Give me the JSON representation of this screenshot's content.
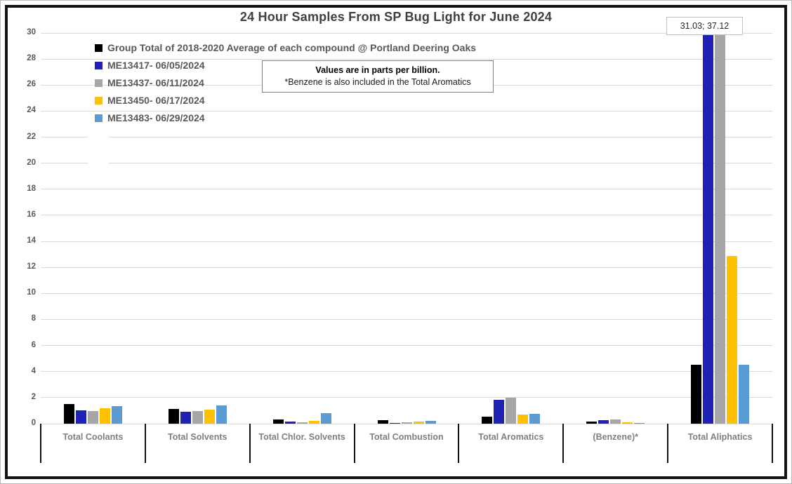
{
  "title": "24 Hour Samples From SP Bug Light for June 2024",
  "note_box": {
    "line1": "Values are in parts per billion.",
    "line2": "*Benzene is also included in the Total Aromatics"
  },
  "annotation_box": "31.03; 37.12",
  "chart_data": {
    "type": "bar",
    "title": "24 Hour Samples From SP Bug Light for June 2024",
    "categories": [
      "Total Coolants",
      "Total Solvents",
      "Total Chlor. Solvents",
      "Total Combustion",
      "Total Aromatics",
      "(Benzene)*",
      "Total Aliphatics"
    ],
    "series": [
      {
        "name": "Group Total of 2018-2020 Average of each compound @ Portland Deering Oaks",
        "color": "#000000",
        "values": [
          1.5,
          1.15,
          0.33,
          0.25,
          0.55,
          0.15,
          4.5
        ]
      },
      {
        "name": "ME13417- 06/05/2024",
        "color": "#1f22b4",
        "values": [
          1.05,
          0.9,
          0.15,
          0.05,
          1.85,
          0.27,
          31.03
        ]
      },
      {
        "name": "ME13437- 06/11/2024",
        "color": "#a6a6a6",
        "values": [
          0.95,
          0.95,
          0.12,
          0.1,
          2.0,
          0.3,
          37.12
        ]
      },
      {
        "name": "ME13450- 06/17/2024",
        "color": "#ffc000",
        "values": [
          1.2,
          1.08,
          0.2,
          0.18,
          0.7,
          0.1,
          12.85
        ]
      },
      {
        "name": "ME13483- 06/29/2024",
        "color": "#5b9bd5",
        "values": [
          1.35,
          1.4,
          0.8,
          0.22,
          0.75,
          0.05,
          4.55
        ]
      }
    ],
    "xlabel": "",
    "ylabel": "",
    "units": "parts per billion",
    "ylim": [
      0,
      30
    ],
    "yticks": [
      0,
      2,
      4,
      6,
      8,
      10,
      12,
      14,
      16,
      18,
      20,
      22,
      24,
      26,
      28,
      30
    ],
    "grid": true,
    "legend_position": "top-left",
    "annotation": "31.03; 37.12"
  }
}
